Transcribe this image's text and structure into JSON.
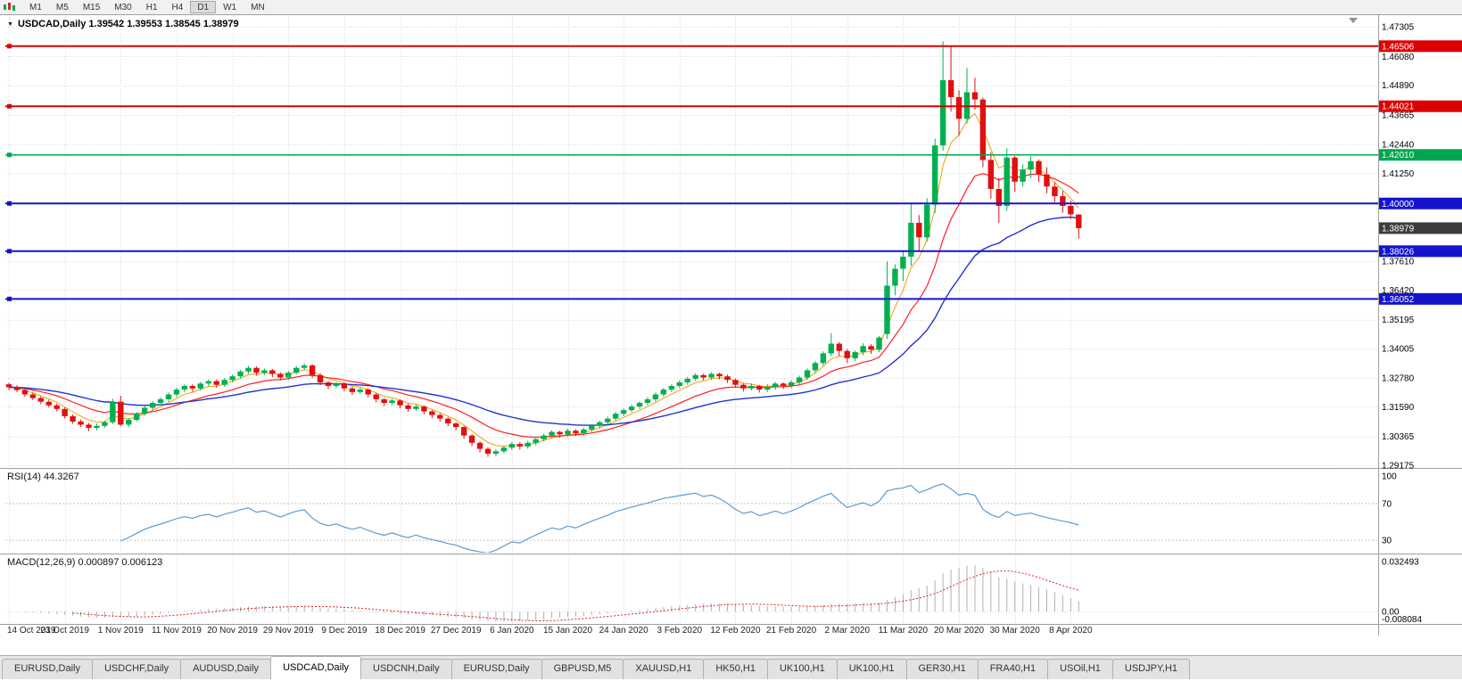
{
  "toolbar": {
    "timeframes": [
      "M1",
      "M5",
      "M15",
      "M30",
      "H1",
      "H4",
      "D1",
      "W1",
      "MN"
    ],
    "active": "D1"
  },
  "chart": {
    "symbol": "USDCAD,Daily",
    "title": "USDCAD,Daily 1.39542 1.39553 1.38545 1.38979",
    "collapse_icon": "▼"
  },
  "colors": {
    "candle_up": "#00b050",
    "candle_down": "#e01010",
    "grid": "#d8d8d8",
    "rsi": "#5b9bd5",
    "macd_hist": "#b0b0b0",
    "macd_signal": "#dd2020",
    "last_price_bg": "#3c3c3c"
  },
  "price_axis": {
    "plain": [
      {
        "value": 1.47305,
        "text": "1.47305"
      },
      {
        "value": 1.4608,
        "text": "1.46080"
      },
      {
        "value": 1.4489,
        "text": "1.44890"
      },
      {
        "value": 1.43665,
        "text": "1.43665"
      },
      {
        "value": 1.4244,
        "text": "1.42440"
      },
      {
        "value": 1.4125,
        "text": "1.41250"
      },
      {
        "value": 1.3761,
        "text": "1.37610"
      },
      {
        "value": 1.3642,
        "text": "1.36420"
      },
      {
        "value": 1.35195,
        "text": "1.35195"
      },
      {
        "value": 1.34005,
        "text": "1.34005"
      },
      {
        "value": 1.3278,
        "text": "1.32780"
      },
      {
        "value": 1.3159,
        "text": "1.31590"
      },
      {
        "value": 1.30365,
        "text": "1.30365"
      },
      {
        "value": 1.29175,
        "text": "1.29175"
      }
    ]
  },
  "hlines": [
    {
      "value": 1.46506,
      "text": "1.46506",
      "color": "#dd0000",
      "width": 2
    },
    {
      "value": 1.44021,
      "text": "1.44021",
      "color": "#dd0000",
      "width": 2
    },
    {
      "value": 1.4201,
      "text": "1.42010",
      "color": "#00a651",
      "width": 1.4
    },
    {
      "value": 1.4,
      "text": "1.40000",
      "color": "#1414cc",
      "width": 2
    },
    {
      "value": 1.38026,
      "text": "1.38026",
      "color": "#1414cc",
      "width": 2
    },
    {
      "value": 1.36052,
      "text": "1.36052",
      "color": "#1414cc",
      "width": 2
    }
  ],
  "last_price": {
    "value": 1.38979,
    "text": "1.38979"
  },
  "rsi": {
    "label": "RSI(14) 44.3267",
    "levels": [
      {
        "v": 100,
        "text": "100",
        "dashed": false
      },
      {
        "v": 70,
        "text": "70",
        "dashed": true
      },
      {
        "v": 30,
        "text": "30",
        "dashed": true
      }
    ]
  },
  "macd": {
    "label": "MACD(12,26,9) 0.000897 0.006123",
    "axis": [
      {
        "v": 0.032493,
        "text": "0.032493"
      },
      {
        "v": 0,
        "text": "0.00"
      },
      {
        "v": -0.008084,
        "text": "-0.008084"
      }
    ]
  },
  "dates": [
    "14 Oct 2019",
    "23 Oct 2019",
    "1 Nov 2019",
    "11 Nov 2019",
    "20 Nov 2019",
    "29 Nov 2019",
    "9 Dec 2019",
    "18 Dec 2019",
    "27 Dec 2019",
    "6 Jan 2020",
    "15 Jan 2020",
    "24 Jan 2020",
    "3 Feb 2020",
    "12 Feb 2020",
    "21 Feb 2020",
    "2 Mar 2020",
    "11 Mar 2020",
    "20 Mar 2020",
    "30 Mar 2020",
    "8 Apr 2020"
  ],
  "tabs": {
    "active_index": 3,
    "items": [
      "EURUSD,Daily",
      "USDCHF,Daily",
      "AUDUSD,Daily",
      "USDCAD,Daily",
      "USDCNH,Daily",
      "EURUSD,Daily",
      "GBPUSD,M5",
      "XAUUSD,H1",
      "HK50,H1",
      "UK100,H1",
      "UK100,H1",
      "GER30,H1",
      "FRA40,H1",
      "USOil,H1",
      "USDJPY,H1"
    ]
  },
  "chart_data": {
    "type": "candlestick",
    "symbol": "USDCAD",
    "timeframe": "Daily",
    "last_ohlc": {
      "open": 1.39542,
      "high": 1.39553,
      "low": 1.38545,
      "close": 1.38979
    },
    "price_range": [
      1.2917,
      1.4731
    ],
    "date_label_every": 7,
    "overlays": [
      {
        "name": "ma-fast-orange",
        "period": 5,
        "color": "#f0a000",
        "width": 1
      },
      {
        "name": "ma-mid-red",
        "period": 13,
        "color": "#ff2020",
        "width": 1.2
      },
      {
        "name": "ma-slow-blue",
        "period": 30,
        "color": "#2233cc",
        "width": 1.4
      }
    ],
    "indicators": [
      {
        "type": "rsi",
        "period": 14,
        "last": 44.3267
      },
      {
        "type": "macd",
        "fast": 12,
        "slow": 26,
        "signal": 9,
        "last_main": 0.000897,
        "last_signal": 0.006123
      }
    ],
    "ohlc": [
      [
        1.3252,
        1.3258,
        1.3228,
        1.324
      ],
      [
        1.324,
        1.3248,
        1.322,
        1.3228
      ],
      [
        1.3228,
        1.3235,
        1.32,
        1.321
      ],
      [
        1.321,
        1.3218,
        1.3186,
        1.3195
      ],
      [
        1.3195,
        1.3202,
        1.317,
        1.318
      ],
      [
        1.318,
        1.3188,
        1.3156,
        1.3165
      ],
      [
        1.3165,
        1.3172,
        1.314,
        1.315
      ],
      [
        1.315,
        1.3156,
        1.311,
        1.312
      ],
      [
        1.312,
        1.3128,
        1.3088,
        1.3098
      ],
      [
        1.3098,
        1.3106,
        1.3075,
        1.3085
      ],
      [
        1.3085,
        1.3092,
        1.3058,
        1.3072
      ],
      [
        1.3072,
        1.309,
        1.3062,
        1.308
      ],
      [
        1.308,
        1.3102,
        1.3072,
        1.3095
      ],
      [
        1.3095,
        1.3192,
        1.3088,
        1.318
      ],
      [
        1.318,
        1.3205,
        1.3078,
        1.3085
      ],
      [
        1.3085,
        1.3112,
        1.3075,
        1.3105
      ],
      [
        1.3105,
        1.3138,
        1.3098,
        1.313
      ],
      [
        1.313,
        1.3162,
        1.3122,
        1.3155
      ],
      [
        1.3155,
        1.3182,
        1.3146,
        1.3175
      ],
      [
        1.3175,
        1.3198,
        1.3165,
        1.319
      ],
      [
        1.319,
        1.3218,
        1.318,
        1.321
      ],
      [
        1.321,
        1.3238,
        1.32,
        1.323
      ],
      [
        1.323,
        1.3252,
        1.322,
        1.3245
      ],
      [
        1.3245,
        1.3252,
        1.3222,
        1.3235
      ],
      [
        1.3235,
        1.3262,
        1.3226,
        1.3255
      ],
      [
        1.3255,
        1.3272,
        1.3244,
        1.3265
      ],
      [
        1.3265,
        1.3272,
        1.3238,
        1.325
      ],
      [
        1.325,
        1.3278,
        1.3242,
        1.327
      ],
      [
        1.327,
        1.3292,
        1.326,
        1.3285
      ],
      [
        1.3285,
        1.3312,
        1.3276,
        1.3305
      ],
      [
        1.3305,
        1.3328,
        1.3296,
        1.332
      ],
      [
        1.332,
        1.3326,
        1.3288,
        1.33
      ],
      [
        1.33,
        1.3318,
        1.329,
        1.331
      ],
      [
        1.331,
        1.3316,
        1.3282,
        1.3295
      ],
      [
        1.3295,
        1.3302,
        1.3268,
        1.328
      ],
      [
        1.328,
        1.3308,
        1.327,
        1.33
      ],
      [
        1.33,
        1.3328,
        1.3292,
        1.332
      ],
      [
        1.332,
        1.3338,
        1.331,
        1.333
      ],
      [
        1.333,
        1.3336,
        1.3278,
        1.329
      ],
      [
        1.329,
        1.3298,
        1.3248,
        1.326
      ],
      [
        1.326,
        1.3266,
        1.3232,
        1.3245
      ],
      [
        1.3245,
        1.3262,
        1.3236,
        1.3255
      ],
      [
        1.3255,
        1.326,
        1.3224,
        1.3235
      ],
      [
        1.3235,
        1.3242,
        1.3208,
        1.322
      ],
      [
        1.322,
        1.3238,
        1.3212,
        1.323
      ],
      [
        1.323,
        1.3236,
        1.3198,
        1.321
      ],
      [
        1.321,
        1.3216,
        1.3178,
        1.319
      ],
      [
        1.319,
        1.3196,
        1.3162,
        1.3175
      ],
      [
        1.3175,
        1.3192,
        1.3166,
        1.3185
      ],
      [
        1.3185,
        1.319,
        1.3152,
        1.3165
      ],
      [
        1.3165,
        1.3172,
        1.3138,
        1.315
      ],
      [
        1.315,
        1.3168,
        1.3142,
        1.316
      ],
      [
        1.316,
        1.3165,
        1.3128,
        1.314
      ],
      [
        1.314,
        1.3146,
        1.3112,
        1.3125
      ],
      [
        1.3125,
        1.3132,
        1.3098,
        1.311
      ],
      [
        1.311,
        1.3116,
        1.3078,
        1.309
      ],
      [
        1.309,
        1.3096,
        1.3062,
        1.3075
      ],
      [
        1.3075,
        1.308,
        1.3026,
        1.304
      ],
      [
        1.304,
        1.3046,
        1.2996,
        1.301
      ],
      [
        1.301,
        1.3016,
        1.297,
        1.2985
      ],
      [
        1.2985,
        1.2992,
        1.2952,
        1.2965
      ],
      [
        1.2965,
        1.2984,
        1.2955,
        1.2975
      ],
      [
        1.2975,
        1.2998,
        1.2966,
        1.299
      ],
      [
        1.299,
        1.3012,
        1.298,
        1.3005
      ],
      [
        1.3005,
        1.3012,
        1.2982,
        1.2995
      ],
      [
        1.2995,
        1.3018,
        1.2986,
        1.301
      ],
      [
        1.301,
        1.3032,
        1.3,
        1.3025
      ],
      [
        1.3025,
        1.3048,
        1.3016,
        1.304
      ],
      [
        1.304,
        1.3062,
        1.303,
        1.3055
      ],
      [
        1.3055,
        1.306,
        1.3032,
        1.3045
      ],
      [
        1.3045,
        1.3068,
        1.3036,
        1.306
      ],
      [
        1.306,
        1.3066,
        1.3038,
        1.305
      ],
      [
        1.305,
        1.3072,
        1.304,
        1.3065
      ],
      [
        1.3065,
        1.3088,
        1.3056,
        1.308
      ],
      [
        1.308,
        1.3102,
        1.307,
        1.3095
      ],
      [
        1.3095,
        1.3118,
        1.3086,
        1.311
      ],
      [
        1.311,
        1.3138,
        1.3102,
        1.313
      ],
      [
        1.313,
        1.3152,
        1.312,
        1.3145
      ],
      [
        1.3145,
        1.3168,
        1.3136,
        1.316
      ],
      [
        1.316,
        1.3182,
        1.315,
        1.3175
      ],
      [
        1.3175,
        1.3198,
        1.3166,
        1.319
      ],
      [
        1.319,
        1.3218,
        1.318,
        1.321
      ],
      [
        1.321,
        1.3238,
        1.32,
        1.323
      ],
      [
        1.323,
        1.3252,
        1.322,
        1.3245
      ],
      [
        1.3245,
        1.3268,
        1.3236,
        1.326
      ],
      [
        1.326,
        1.3282,
        1.325,
        1.3275
      ],
      [
        1.3275,
        1.3298,
        1.3266,
        1.329
      ],
      [
        1.329,
        1.3296,
        1.3268,
        1.328
      ],
      [
        1.328,
        1.3302,
        1.327,
        1.3295
      ],
      [
        1.3295,
        1.33,
        1.3272,
        1.3285
      ],
      [
        1.3285,
        1.3292,
        1.3258,
        1.327
      ],
      [
        1.327,
        1.3276,
        1.3238,
        1.325
      ],
      [
        1.325,
        1.3256,
        1.3222,
        1.3235
      ],
      [
        1.3235,
        1.3256,
        1.3226,
        1.3245
      ],
      [
        1.3245,
        1.325,
        1.3218,
        1.323
      ],
      [
        1.323,
        1.3252,
        1.322,
        1.324
      ],
      [
        1.324,
        1.3262,
        1.323,
        1.3255
      ],
      [
        1.3255,
        1.326,
        1.3232,
        1.3245
      ],
      [
        1.3245,
        1.3268,
        1.3236,
        1.326
      ],
      [
        1.326,
        1.3288,
        1.325,
        1.328
      ],
      [
        1.328,
        1.3318,
        1.327,
        1.331
      ],
      [
        1.331,
        1.3348,
        1.33,
        1.334
      ],
      [
        1.334,
        1.3388,
        1.333,
        1.338
      ],
      [
        1.338,
        1.3464,
        1.3368,
        1.342
      ],
      [
        1.342,
        1.3428,
        1.3368,
        1.339
      ],
      [
        1.339,
        1.3398,
        1.334,
        1.336
      ],
      [
        1.336,
        1.3392,
        1.3348,
        1.3385
      ],
      [
        1.3385,
        1.3422,
        1.3372,
        1.341
      ],
      [
        1.341,
        1.3418,
        1.3378,
        1.3395
      ],
      [
        1.3395,
        1.3452,
        1.3385,
        1.3445
      ],
      [
        1.346,
        1.376,
        1.344,
        1.366
      ],
      [
        1.366,
        1.3748,
        1.362,
        1.373
      ],
      [
        1.373,
        1.3802,
        1.368,
        1.378
      ],
      [
        1.378,
        1.3998,
        1.3742,
        1.392
      ],
      [
        1.392,
        1.3952,
        1.38,
        1.386
      ],
      [
        1.386,
        1.4022,
        1.3842,
        1.3995
      ],
      [
        1.3995,
        1.4268,
        1.396,
        1.424
      ],
      [
        1.424,
        1.467,
        1.4218,
        1.451
      ],
      [
        1.451,
        1.4652,
        1.438,
        1.444
      ],
      [
        1.444,
        1.4468,
        1.428,
        1.435
      ],
      [
        1.435,
        1.456,
        1.433,
        1.446
      ],
      [
        1.446,
        1.452,
        1.4388,
        1.443
      ],
      [
        1.443,
        1.4438,
        1.415,
        1.418
      ],
      [
        1.418,
        1.4212,
        1.402,
        1.406
      ],
      [
        1.406,
        1.4106,
        1.392,
        1.399
      ],
      [
        1.399,
        1.4228,
        1.397,
        1.419
      ],
      [
        1.419,
        1.4196,
        1.4048,
        1.409
      ],
      [
        1.409,
        1.4162,
        1.407,
        1.414
      ],
      [
        1.414,
        1.4196,
        1.4105,
        1.4175
      ],
      [
        1.4175,
        1.4182,
        1.4088,
        1.412
      ],
      [
        1.412,
        1.415,
        1.4042,
        1.407
      ],
      [
        1.407,
        1.4088,
        1.4006,
        1.403
      ],
      [
        1.403,
        1.4052,
        1.3962,
        1.399
      ],
      [
        1.399,
        1.4012,
        1.3936,
        1.3955
      ],
      [
        1.39542,
        1.39553,
        1.38545,
        1.38979
      ]
    ]
  }
}
